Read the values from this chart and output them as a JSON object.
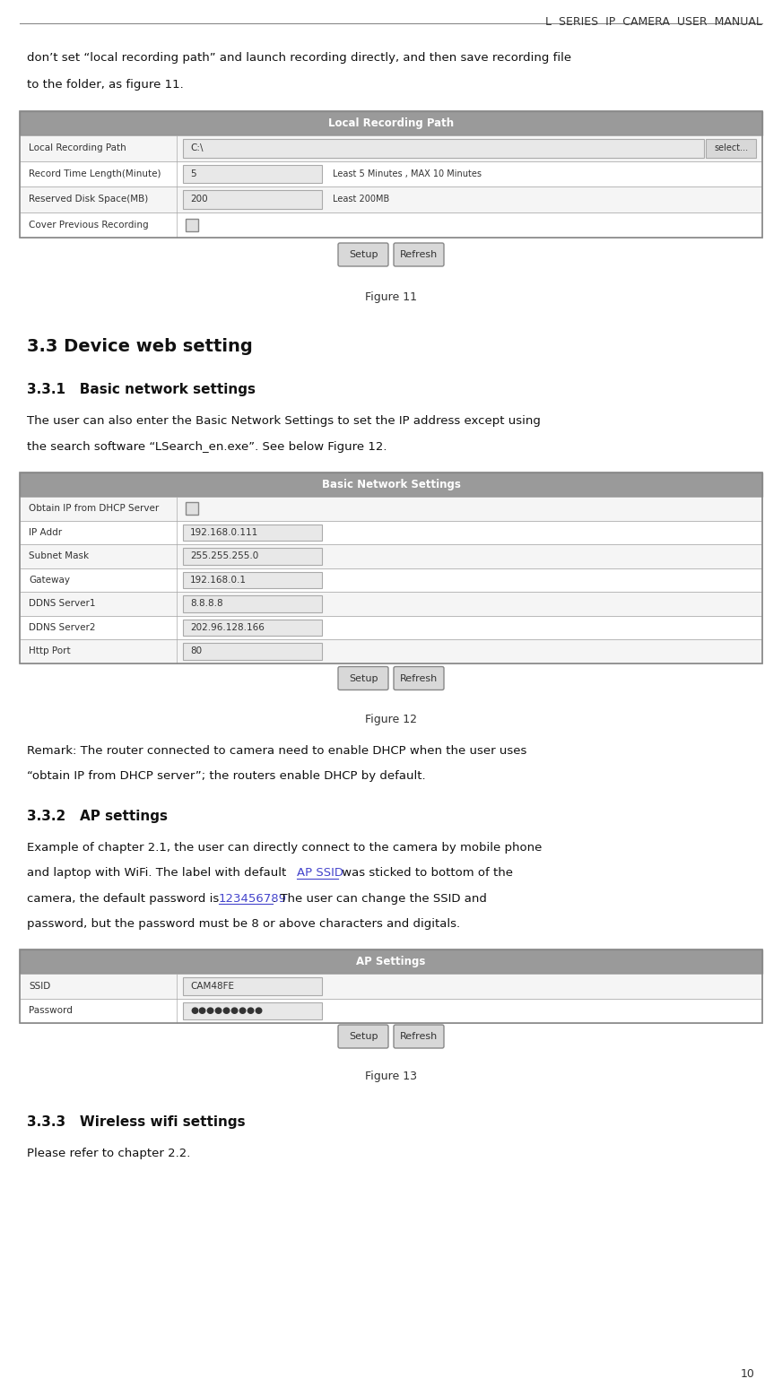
{
  "page_title": "L  SERIES  IP  CAMERA  USER  MANUAL",
  "page_number": "10",
  "bg_color": "#ffffff",
  "text_color": "#000000",
  "table_header_bg": "#999999",
  "input_box_bg": "#e8e8e8",
  "button_bg": "#d8d8d8",
  "link_color": "#4444cc",
  "intro_line1": "don’t set “local recording path” and launch recording directly, and then save recording file",
  "intro_line2": "to the folder, as figure 11.",
  "fig11_title": "Local Recording Path",
  "fig11_rows": [
    {
      "label": "Local Recording Path",
      "value": "C:\\",
      "extra": "",
      "has_select": true,
      "has_checkbox": false
    },
    {
      "label": "Record Time Length(Minute)",
      "value": "5",
      "extra": "Least 5 Minutes , MAX 10 Minutes",
      "has_select": false,
      "has_checkbox": false
    },
    {
      "label": "Reserved Disk Space(MB)",
      "value": "200",
      "extra": "Least 200MB",
      "has_select": false,
      "has_checkbox": false
    },
    {
      "label": "Cover Previous Recording",
      "value": "",
      "extra": "",
      "has_select": false,
      "has_checkbox": true
    }
  ],
  "fig11_caption": "Figure 11",
  "section_33_title": "3.3 Device web setting",
  "section_331_title": "3.3.1   Basic network settings",
  "section_331_line1": "The user can also enter the Basic Network Settings to set the IP address except using",
  "section_331_line2": "the search software “LSearch_en.exe”. See below Figure 12.",
  "fig12_title": "Basic Network Settings",
  "fig12_rows": [
    {
      "label": "Obtain IP from DHCP Server",
      "value": "",
      "extra": "",
      "has_checkbox": true
    },
    {
      "label": "IP Addr",
      "value": "192.168.0.111",
      "extra": "",
      "has_checkbox": false
    },
    {
      "label": "Subnet Mask",
      "value": "255.255.255.0",
      "extra": "",
      "has_checkbox": false
    },
    {
      "label": "Gateway",
      "value": "192.168.0.1",
      "extra": "",
      "has_checkbox": false
    },
    {
      "label": "DDNS Server1",
      "value": "8.8.8.8",
      "extra": "",
      "has_checkbox": false
    },
    {
      "label": "DDNS Server2",
      "value": "202.96.128.166",
      "extra": "",
      "has_checkbox": false
    },
    {
      "label": "Http Port",
      "value": "80",
      "extra": "",
      "has_checkbox": false
    }
  ],
  "fig12_caption": "Figure 12",
  "remark_line1": "Remark: The router connected to camera need to enable DHCP when the user uses",
  "remark_line2": "“obtain IP from DHCP server”; the routers enable DHCP by default.",
  "section_332_title": "3.3.2   AP settings",
  "s332_line1": "Example of chapter 2.1, the user can directly connect to the camera by mobile phone",
  "s332_line2a": "and laptop with WiFi. The label with default ",
  "s332_line2b": "AP SSID",
  "s332_line2c": " was sticked to bottom of the",
  "s332_line3a": "camera, the default password is ",
  "s332_line3b": "123456789",
  "s332_line3c": ". The user can change the SSID and",
  "s332_line4": "password, but the password must be 8 or above characters and digitals.",
  "fig13_title": "AP Settings",
  "fig13_rows": [
    {
      "label": "SSID",
      "value": "CAM48FE",
      "has_checkbox": false
    },
    {
      "label": "Password",
      "value": "●●●●●●●●●",
      "has_checkbox": false
    }
  ],
  "fig13_caption": "Figure 13",
  "section_333_title": "3.3.3   Wireless wifi settings",
  "section_333_text": "Please refer to chapter 2.2."
}
